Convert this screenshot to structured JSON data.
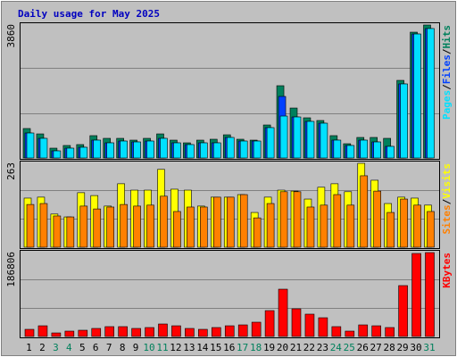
{
  "chart_data": [
    {
      "type": "bar",
      "title": "Daily usage for May 2025",
      "ylim": [
        0,
        3860
      ],
      "yticks": [
        3860
      ],
      "legend_separator": "/",
      "series": [
        {
          "name": "Hits",
          "color": "#00805c",
          "values": [
            855,
            699,
            285,
            363,
            389,
            648,
            570,
            570,
            518,
            570,
            699,
            518,
            440,
            518,
            544,
            673,
            544,
            518,
            958,
            2098,
            1450,
            1166,
            1088,
            648,
            414,
            596,
            596,
            570,
            2253,
            3652,
            3860
          ]
        },
        {
          "name": "Files",
          "color": "#0040ff",
          "values": [
            725,
            570,
            207,
            285,
            311,
            518,
            440,
            492,
            466,
            492,
            570,
            440,
            389,
            440,
            440,
            596,
            492,
            492,
            881,
            1787,
            1191,
            1062,
            1010,
            518,
            363,
            518,
            466,
            337,
            2150,
            3600,
            3757
          ]
        },
        {
          "name": "Pages",
          "color": "#00e0ff",
          "values": [
            725,
            570,
            207,
            285,
            311,
            518,
            440,
            492,
            466,
            492,
            570,
            440,
            389,
            440,
            440,
            596,
            492,
            492,
            881,
            1217,
            1191,
            1062,
            1010,
            518,
            363,
            518,
            466,
            337,
            2150,
            3600,
            3757
          ]
        }
      ]
    },
    {
      "type": "bar",
      "ylim": [
        0,
        263
      ],
      "yticks": [
        263
      ],
      "series": [
        {
          "name": "Visits",
          "color": "#ffff00",
          "values": [
            154,
            157,
            104,
            95,
            171,
            162,
            129,
            199,
            179,
            179,
            244,
            182,
            179,
            129,
            157,
            157,
            165,
            109,
            157,
            179,
            176,
            151,
            188,
            199,
            174,
            263,
            210,
            137,
            157,
            154,
            132
          ]
        },
        {
          "name": "Sites",
          "color": "#ff8000",
          "values": [
            134,
            137,
            98,
            95,
            129,
            120,
            126,
            134,
            129,
            132,
            160,
            112,
            126,
            126,
            157,
            157,
            165,
            92,
            137,
            174,
            174,
            126,
            132,
            165,
            132,
            224,
            176,
            109,
            151,
            132,
            112
          ]
        }
      ]
    },
    {
      "type": "bar",
      "ylim": [
        0,
        186806
      ],
      "yticks": [
        186806
      ],
      "categories": [
        "1",
        "2",
        "3",
        "4",
        "5",
        "6",
        "7",
        "8",
        "9",
        "10",
        "11",
        "12",
        "13",
        "14",
        "15",
        "16",
        "17",
        "18",
        "19",
        "20",
        "21",
        "22",
        "23",
        "24",
        "25",
        "26",
        "27",
        "28",
        "29",
        "30",
        "31"
      ],
      "category_colors": [
        "#000000",
        "#000000",
        "#00805c",
        "#00805c",
        "#000000",
        "#000000",
        "#000000",
        "#000000",
        "#000000",
        "#00805c",
        "#00805c",
        "#000000",
        "#000000",
        "#000000",
        "#000000",
        "#000000",
        "#00805c",
        "#00805c",
        "#000000",
        "#000000",
        "#000000",
        "#000000",
        "#000000",
        "#00805c",
        "#00805c",
        "#000000",
        "#000000",
        "#000000",
        "#000000",
        "#000000",
        "#00805c"
      ],
      "series": [
        {
          "name": "KBytes",
          "color": "#ff0000",
          "values": [
            15900,
            23800,
            7900,
            11900,
            13900,
            17900,
            21900,
            21900,
            17900,
            19900,
            27800,
            23800,
            17900,
            15900,
            19900,
            23800,
            25800,
            31800,
            57600,
            105300,
            61600,
            49700,
            41700,
            21900,
            11900,
            25800,
            23800,
            19900,
            113300,
            184800,
            186806
          ]
        }
      ]
    }
  ]
}
